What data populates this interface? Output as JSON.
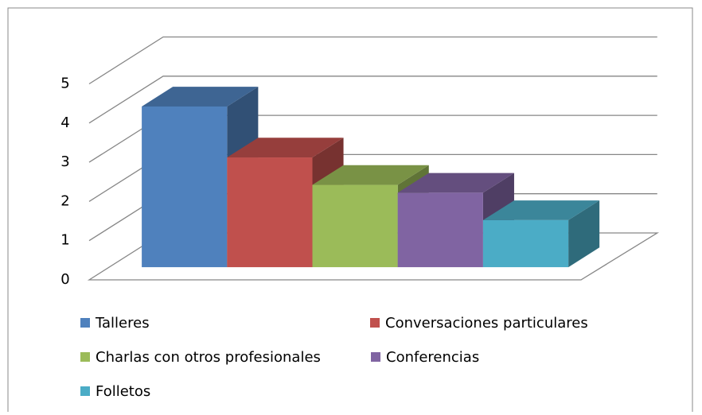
{
  "chart_data": {
    "type": "bar3d",
    "series": [
      {
        "name": "Talleres",
        "color": "#4f81bd",
        "values": [
          4.1
        ]
      },
      {
        "name": "Conversaciones particulares",
        "color": "#c0504d",
        "values": [
          2.8
        ]
      },
      {
        "name": "Charlas con otros profesionales",
        "color": "#9bbb59",
        "values": [
          2.1
        ]
      },
      {
        "name": "Conferencias",
        "color": "#8064a2",
        "values": [
          1.9
        ]
      },
      {
        "name": "Folletos",
        "color": "#4bacc6",
        "values": [
          1.2
        ]
      }
    ],
    "ylim": [
      0,
      5
    ],
    "yticks": [
      0,
      1,
      2,
      3,
      4,
      5
    ],
    "grid": true,
    "legend": "bottom"
  }
}
